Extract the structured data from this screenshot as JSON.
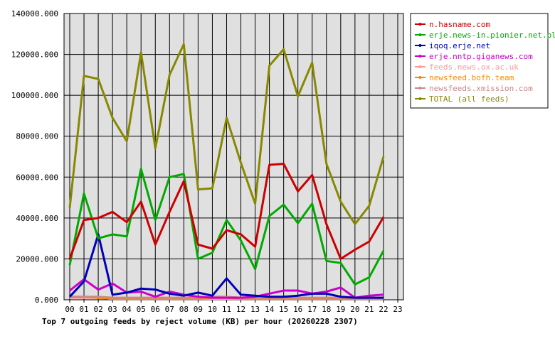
{
  "chart_data": {
    "type": "line",
    "title": "Top 7 outgoing feeds by reject volume (KB) per hour (20260228 2307)",
    "categories": [
      "00",
      "01",
      "02",
      "03",
      "04",
      "05",
      "06",
      "07",
      "08",
      "09",
      "10",
      "11",
      "12",
      "13",
      "14",
      "15",
      "16",
      "17",
      "18",
      "19",
      "20",
      "21",
      "22",
      "23"
    ],
    "y_ticks": [
      "0.000",
      "20000.000",
      "40000.000",
      "60000.000",
      "80000.000",
      "100000.000",
      "120000.000",
      "140000.000"
    ],
    "ylim": [
      0,
      140000
    ],
    "grid": true,
    "legend_position": "top-right",
    "series": [
      {
        "name": "n.hasname.com",
        "color": "#cc0000",
        "values": [
          20000,
          39000,
          40000,
          43000,
          38000,
          48000,
          27000,
          43000,
          58000,
          27000,
          25000,
          34000,
          32000,
          26000,
          66000,
          66500,
          53000,
          61000,
          37000,
          20000,
          24500,
          28500,
          40500,
          null
        ]
      },
      {
        "name": "erje.news-in.pionier.net.pl",
        "color": "#00aa00",
        "values": [
          17000,
          52000,
          30000,
          32000,
          31000,
          64000,
          39000,
          60000,
          61500,
          20000,
          23000,
          39000,
          29000,
          15000,
          41000,
          46500,
          37500,
          47000,
          19000,
          18000,
          7500,
          11000,
          24000,
          null
        ]
      },
      {
        "name": "iqoq.erje.net",
        "color": "#0000bb",
        "values": [
          1500,
          9000,
          32000,
          2500,
          3500,
          5500,
          5000,
          3000,
          2000,
          3500,
          2000,
          10500,
          2500,
          2000,
          1500,
          1500,
          2000,
          3000,
          3000,
          1500,
          1000,
          1000,
          1000,
          null
        ]
      },
      {
        "name": "erje.nntp.giganews.com",
        "color": "#cc00cc",
        "values": [
          4500,
          10000,
          5000,
          8000,
          3500,
          4000,
          1500,
          4000,
          2500,
          1500,
          1000,
          1000,
          1000,
          1500,
          3000,
          4500,
          4500,
          3000,
          4000,
          6000,
          1000,
          2000,
          2500,
          null
        ]
      },
      {
        "name": "feeds.news.ox.ac.uk",
        "color": "#ff9999",
        "values": [
          1000,
          1000,
          1000,
          500,
          500,
          500,
          500,
          500,
          500,
          500,
          500,
          500,
          500,
          500,
          500,
          500,
          500,
          500,
          500,
          500,
          500,
          500,
          500,
          null
        ]
      },
      {
        "name": "newsfeed.bofh.team",
        "color": "#ff8800",
        "values": [
          1500,
          1500,
          1000,
          500,
          500,
          500,
          500,
          500,
          500,
          500,
          1000,
          1000,
          500,
          500,
          500,
          500,
          500,
          500,
          500,
          500,
          500,
          500,
          500,
          null
        ]
      },
      {
        "name": "newsfeeds.xmission.com",
        "color": "#cc8888",
        "values": [
          1500,
          1500,
          1500,
          1000,
          1000,
          1000,
          1000,
          1000,
          1000,
          1000,
          1500,
          1500,
          1000,
          1000,
          1000,
          1000,
          1000,
          1000,
          1000,
          1000,
          1000,
          1000,
          1000,
          null
        ]
      },
      {
        "name": "TOTAL (all feeds)",
        "color": "#888800",
        "values": [
          45000,
          109500,
          108000,
          89000,
          77500,
          121000,
          74000,
          110000,
          125000,
          54000,
          54500,
          89000,
          67000,
          47000,
          114500,
          122500,
          99500,
          116000,
          66500,
          48000,
          37000,
          46000,
          70000,
          null
        ]
      }
    ]
  }
}
